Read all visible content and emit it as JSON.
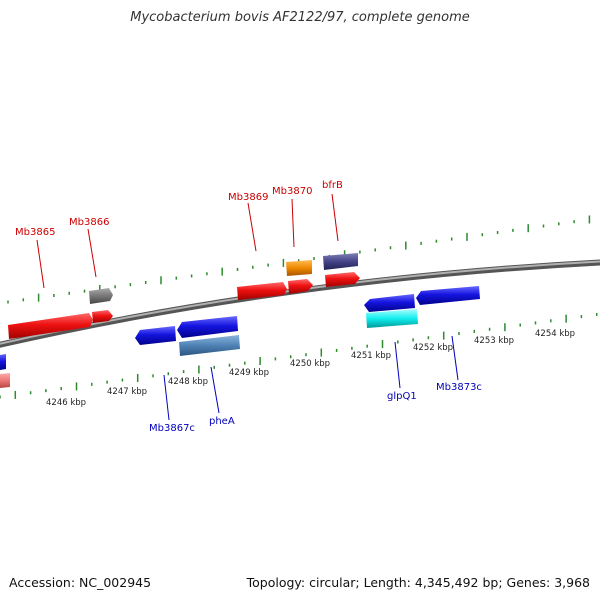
{
  "title": "Mycobacterium bovis AF2122/97, complete genome",
  "accession": "Accession: NC_002945",
  "stats": "Topology: circular; Length: 4,345,492 bp; Genes: 3,968",
  "ruler_labels": [
    "4246 kbp",
    "4247 kbp",
    "4248 kbp",
    "4249 kbp",
    "4250 kbp",
    "4251 kbp",
    "4252 kbp",
    "4253 kbp",
    "4254 kbp"
  ],
  "forward_labels": [
    "Mb3865",
    "Mb3866",
    "Mb3869",
    "Mb3870",
    "bfrB"
  ],
  "reverse_labels": [
    "Mb3867c",
    "pheA",
    "glpQ1",
    "Mb3873c"
  ],
  "colors": {
    "forward_label": "#cc0000",
    "reverse_label": "#0000bb",
    "tick": "#2e8b2e",
    "backbone": "#808080",
    "red": "#ee1111",
    "blue": "#1515e0",
    "grey": "#777777",
    "orange": "#ee8800",
    "slate": "#444488",
    "cyan": "#11eeee",
    "steel": "#4e82b4",
    "pink": "#ee7777"
  }
}
